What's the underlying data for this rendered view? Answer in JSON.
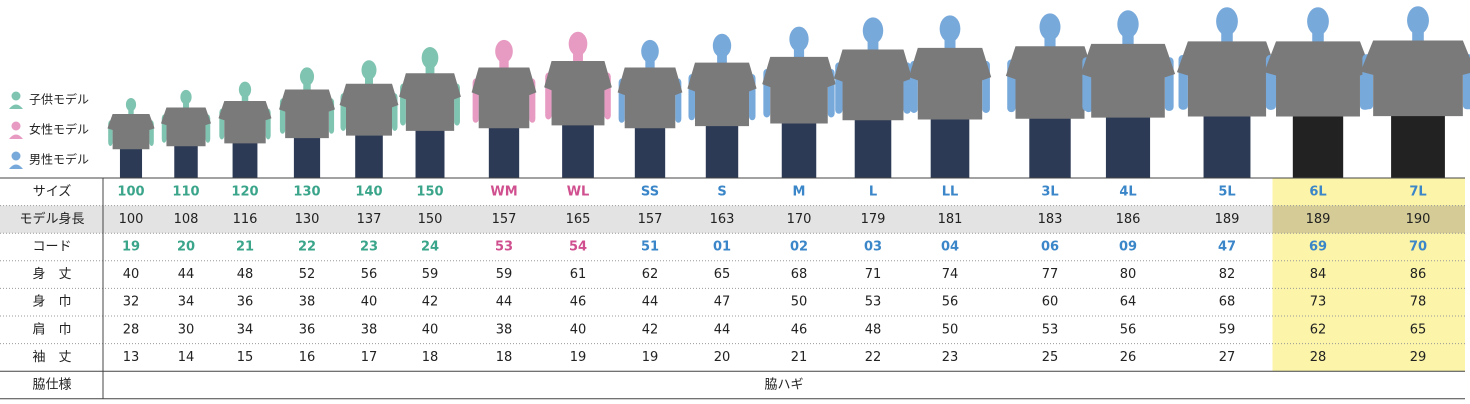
{
  "legend": [
    "子供モデル",
    "女性モデル",
    "男性モデル"
  ],
  "legend_colors": [
    "#7fc4b0",
    "#e79ac2",
    "#78a9db"
  ],
  "table": {
    "column_colors": [
      "#3aa58a",
      "#3aa58a",
      "#3aa58a",
      "#3aa58a",
      "#3aa58a",
      "#3aa58a",
      "#d0508f",
      "#d0508f",
      "#3a86c8",
      "#3a86c8",
      "#3a86c8",
      "#3a86c8",
      "#3a86c8",
      "#3a86c8",
      "#3a86c8",
      "#3a86c8",
      "#3a86c8",
      "#3a86c8"
    ],
    "rows": [
      {
        "label": "サイズ",
        "cells": [
          "100",
          "110",
          "120",
          "130",
          "140",
          "150",
          "WM",
          "WL",
          "SS",
          "S",
          "M",
          "L",
          "LL",
          "3L",
          "4L",
          "5L",
          "6L",
          "7L"
        ]
      },
      {
        "label": "モデル身長",
        "cells": [
          100,
          108,
          116,
          130,
          137,
          150,
          157,
          165,
          157,
          163,
          170,
          179,
          181,
          183,
          186,
          189,
          189,
          190
        ]
      },
      {
        "label": "コード",
        "cells": [
          "19",
          "20",
          "21",
          "22",
          "23",
          "24",
          "53",
          "54",
          "51",
          "01",
          "02",
          "03",
          "04",
          "06",
          "09",
          "47",
          "69",
          "70"
        ]
      },
      {
        "label": "身　丈",
        "cells": [
          40,
          44,
          48,
          52,
          56,
          59,
          59,
          61,
          62,
          65,
          68,
          71,
          74,
          77,
          80,
          82,
          84,
          86
        ]
      },
      {
        "label": "身　巾",
        "cells": [
          32,
          34,
          36,
          38,
          40,
          42,
          44,
          46,
          44,
          47,
          50,
          53,
          56,
          60,
          64,
          68,
          73,
          78
        ]
      },
      {
        "label": "肩　巾",
        "cells": [
          28,
          30,
          34,
          36,
          38,
          40,
          38,
          40,
          42,
          44,
          46,
          48,
          50,
          53,
          56,
          59,
          62,
          65
        ]
      },
      {
        "label": "袖　丈",
        "cells": [
          13,
          14,
          15,
          16,
          17,
          18,
          18,
          19,
          19,
          20,
          21,
          22,
          23,
          25,
          26,
          27,
          28,
          29
        ]
      }
    ],
    "footer": {
      "label": "脇仕様",
      "value": "脇ハギ"
    }
  }
}
